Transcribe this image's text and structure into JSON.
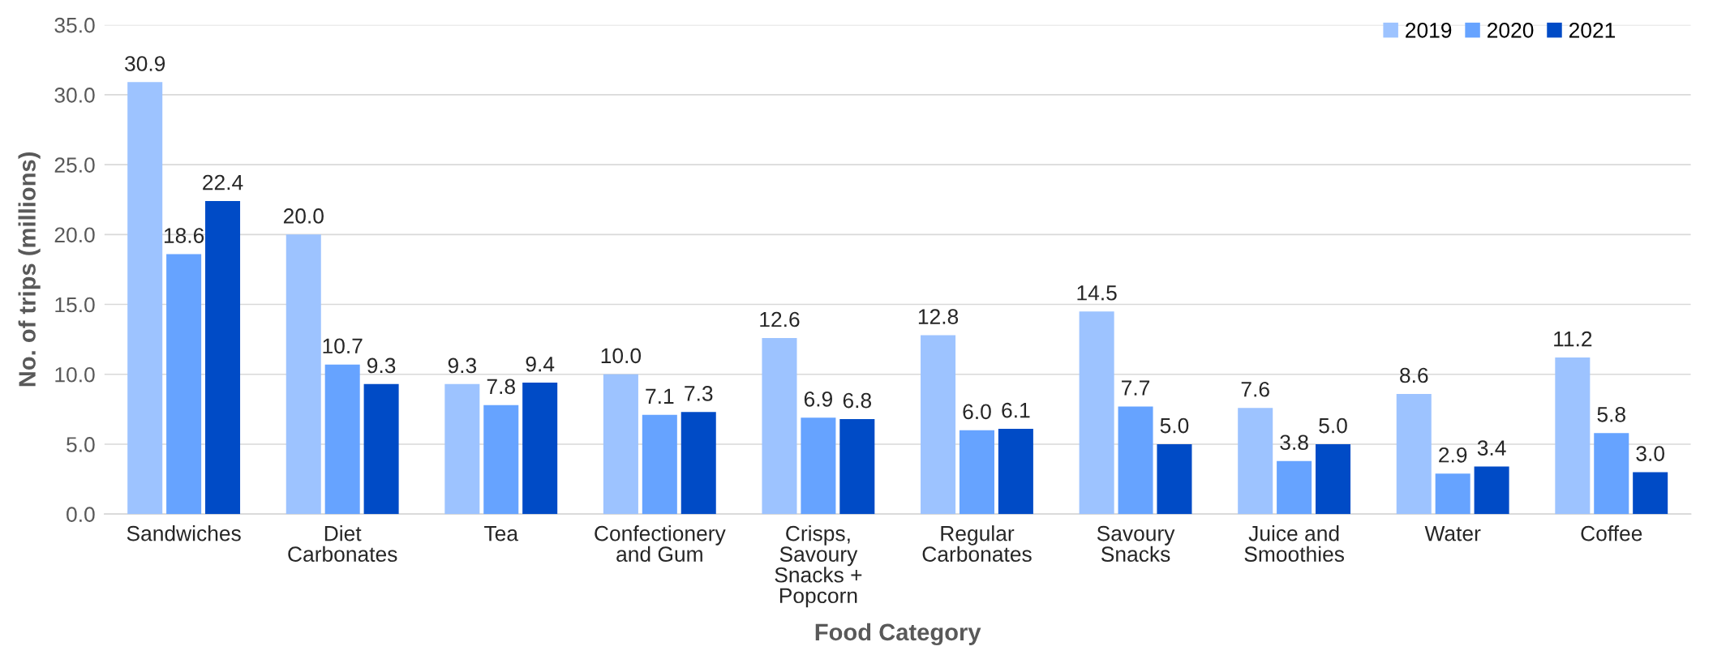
{
  "chart_data": {
    "type": "bar",
    "xlabel": "Food Category",
    "ylabel": "No. of trips (millions)",
    "categories": [
      "Sandwiches",
      "Diet\nCarbonates",
      "Tea",
      "Confectionery\nand Gum",
      "Crisps,\nSavoury\nSnacks +\nPopcorn",
      "Regular\nCarbonates",
      "Savoury\nSnacks",
      "Juice and\nSmoothies",
      "Water",
      "Coffee"
    ],
    "series": [
      {
        "name": "2019",
        "color": "#9dc3ff",
        "values": [
          30.9,
          20.0,
          9.3,
          10.0,
          12.6,
          12.8,
          14.5,
          7.6,
          8.6,
          11.2
        ],
        "value_labels": [
          "30.9",
          "20.0",
          "9.3",
          "10.0",
          "12.6",
          "12.8",
          "14.5",
          "7.6",
          "8.6",
          "11.2"
        ]
      },
      {
        "name": "2020",
        "color": "#66a3ff",
        "values": [
          18.6,
          10.7,
          7.8,
          7.1,
          6.9,
          6.0,
          7.7,
          3.8,
          2.9,
          5.8
        ],
        "value_labels": [
          "18.6",
          "10.7",
          "7.8",
          "7.1",
          "6.9",
          "6.0",
          "7.7",
          "3.8",
          "2.9",
          "5.8"
        ]
      },
      {
        "name": "2021",
        "color": "#004bc6",
        "values": [
          22.4,
          9.3,
          9.4,
          7.3,
          6.8,
          6.1,
          5.0,
          5.0,
          3.4,
          3.0
        ],
        "value_labels": [
          "22.4",
          "9.3",
          "9.4",
          "7.3",
          "6.8",
          "6.1",
          "5.0",
          "5.0",
          "3.4",
          "3.0"
        ]
      }
    ],
    "ylim": [
      0,
      35
    ],
    "yticks": [
      {
        "value": 0,
        "label": "0.0"
      },
      {
        "value": 5,
        "label": "5.0"
      },
      {
        "value": 10,
        "label": "10.0"
      },
      {
        "value": 15,
        "label": "15.0"
      },
      {
        "value": 20,
        "label": "20.0"
      },
      {
        "value": 25,
        "label": "25.0"
      },
      {
        "value": 30,
        "label": "30.0"
      },
      {
        "value": 35,
        "label": "35.0"
      }
    ],
    "grid": "y",
    "legend": "top right"
  }
}
